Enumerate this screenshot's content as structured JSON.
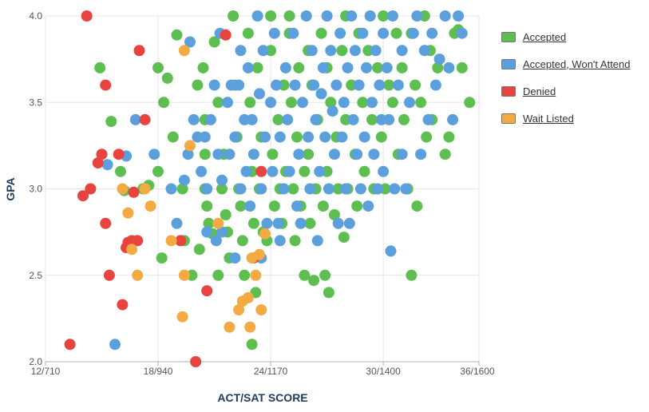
{
  "chart_data": {
    "type": "scatter",
    "xlabel": "ACT/SAT SCORE",
    "ylabel": "GPA",
    "x_ticks": [
      "12/710",
      "18/940",
      "24/1170",
      "30/1400",
      "36/1600"
    ],
    "x_tick_values": [
      12,
      18,
      24,
      30,
      36
    ],
    "y_ticks": [
      "2.0",
      "2.5",
      "3.0",
      "3.5",
      "4.0"
    ],
    "xlim": [
      12,
      35.1
    ],
    "ylim": [
      2.0,
      4.0
    ],
    "grid": true,
    "legend_position": "right",
    "series": [
      {
        "name": "Accepted",
        "color": "#5cbf4f",
        "points": [
          [
            14.9,
            3.7
          ],
          [
            15.5,
            3.39
          ],
          [
            16.0,
            3.1
          ],
          [
            16.2,
            2.99
          ],
          [
            17.2,
            3.0
          ],
          [
            17.5,
            3.02
          ],
          [
            18.0,
            3.7
          ],
          [
            18.0,
            3.1
          ],
          [
            18.2,
            2.6
          ],
          [
            18.5,
            3.64
          ],
          [
            18.3,
            3.5
          ],
          [
            19.0,
            3.89
          ],
          [
            18.8,
            3.3
          ],
          [
            19.3,
            3.0
          ],
          [
            19.4,
            2.7
          ],
          [
            19.8,
            2.5
          ],
          [
            20.1,
            3.6
          ],
          [
            20.2,
            2.65
          ],
          [
            20.4,
            3.7
          ],
          [
            20.5,
            3.2
          ],
          [
            20.5,
            3.0
          ],
          [
            20.6,
            2.9
          ],
          [
            20.7,
            2.8
          ],
          [
            20.5,
            3.4
          ],
          [
            20.9,
            2.74
          ],
          [
            21.0,
            3.85
          ],
          [
            21.2,
            3.5
          ],
          [
            21.2,
            2.5
          ],
          [
            21.4,
            3.0
          ],
          [
            21.5,
            3.2
          ],
          [
            21.6,
            2.85
          ],
          [
            21.7,
            2.75
          ],
          [
            21.8,
            2.6
          ],
          [
            22.0,
            4.0
          ],
          [
            22.1,
            3.6
          ],
          [
            22.2,
            3.3
          ],
          [
            22.3,
            3.0
          ],
          [
            22.4,
            2.9
          ],
          [
            22.5,
            2.7
          ],
          [
            22.6,
            2.5
          ],
          [
            22.8,
            3.9
          ],
          [
            22.9,
            3.5
          ],
          [
            23.0,
            3.1
          ],
          [
            23.1,
            2.8
          ],
          [
            23.2,
            2.4
          ],
          [
            23.0,
            2.1
          ],
          [
            23.3,
            3.7
          ],
          [
            23.4,
            3.0
          ],
          [
            23.5,
            3.3
          ],
          [
            23.6,
            2.75
          ],
          [
            23.8,
            2.7
          ],
          [
            24.0,
            4.0
          ],
          [
            24.0,
            3.8
          ],
          [
            24.1,
            3.2
          ],
          [
            24.2,
            2.9
          ],
          [
            24.4,
            3.4
          ],
          [
            24.5,
            3.0
          ],
          [
            24.6,
            2.8
          ],
          [
            24.7,
            3.6
          ],
          [
            24.8,
            3.1
          ],
          [
            25.0,
            4.0
          ],
          [
            25.0,
            3.9
          ],
          [
            25.1,
            3.5
          ],
          [
            25.2,
            3.0
          ],
          [
            25.3,
            2.7
          ],
          [
            25.4,
            3.3
          ],
          [
            25.5,
            3.7
          ],
          [
            25.6,
            2.9
          ],
          [
            25.8,
            3.1
          ],
          [
            25.8,
            2.5
          ],
          [
            26.0,
            3.8
          ],
          [
            26.0,
            3.2
          ],
          [
            26.1,
            2.8
          ],
          [
            26.2,
            3.6
          ],
          [
            26.3,
            2.47
          ],
          [
            26.4,
            3.0
          ],
          [
            26.5,
            3.4
          ],
          [
            26.7,
            3.9
          ],
          [
            26.8,
            2.9
          ],
          [
            26.9,
            2.5
          ],
          [
            27.0,
            3.7
          ],
          [
            27.0,
            3.1
          ],
          [
            27.1,
            2.4
          ],
          [
            27.2,
            3.5
          ],
          [
            27.4,
            2.85
          ],
          [
            27.5,
            3.3
          ],
          [
            27.6,
            3.0
          ],
          [
            27.8,
            3.8
          ],
          [
            27.9,
            2.72
          ],
          [
            28.0,
            4.0
          ],
          [
            28.0,
            3.4
          ],
          [
            28.1,
            3.0
          ],
          [
            28.3,
            3.6
          ],
          [
            28.5,
            3.2
          ],
          [
            28.6,
            2.9
          ],
          [
            28.7,
            3.9
          ],
          [
            28.9,
            3.5
          ],
          [
            29.0,
            3.1
          ],
          [
            29.2,
            3.8
          ],
          [
            29.4,
            3.4
          ],
          [
            29.5,
            3.0
          ],
          [
            29.7,
            3.7
          ],
          [
            29.9,
            3.3
          ],
          [
            30.0,
            4.0
          ],
          [
            30.1,
            3.0
          ],
          [
            30.3,
            3.6
          ],
          [
            30.5,
            3.5
          ],
          [
            30.7,
            3.9
          ],
          [
            30.8,
            3.2
          ],
          [
            31.0,
            3.7
          ],
          [
            31.1,
            3.4
          ],
          [
            31.3,
            3.0
          ],
          [
            31.5,
            2.5
          ],
          [
            31.5,
            3.9
          ],
          [
            31.7,
            3.6
          ],
          [
            31.8,
            2.9
          ],
          [
            32.0,
            3.5
          ],
          [
            32.2,
            4.0
          ],
          [
            32.3,
            3.3
          ],
          [
            32.5,
            3.8
          ],
          [
            32.6,
            3.4
          ],
          [
            32.9,
            3.7
          ],
          [
            33.3,
            3.2
          ],
          [
            33.5,
            3.3
          ],
          [
            33.8,
            3.9
          ],
          [
            34.0,
            3.92
          ],
          [
            34.2,
            3.7
          ],
          [
            34.6,
            3.5
          ]
        ]
      },
      {
        "name": "Accepted, Won't Attend",
        "color": "#5ba0dd",
        "points": [
          [
            15.3,
            3.14
          ],
          [
            15.7,
            2.1
          ],
          [
            16.3,
            3.19
          ],
          [
            16.8,
            3.4
          ],
          [
            17.8,
            3.2
          ],
          [
            18.7,
            3.0
          ],
          [
            19.0,
            2.8
          ],
          [
            19.2,
            2.7
          ],
          [
            19.4,
            3.05
          ],
          [
            19.6,
            3.2
          ],
          [
            19.7,
            3.85
          ],
          [
            19.9,
            3.4
          ],
          [
            20.1,
            3.3
          ],
          [
            20.3,
            3.1
          ],
          [
            20.5,
            3.3
          ],
          [
            20.6,
            3.0
          ],
          [
            20.6,
            2.75
          ],
          [
            20.8,
            3.4
          ],
          [
            21.0,
            3.6
          ],
          [
            21.1,
            2.7
          ],
          [
            21.2,
            3.2
          ],
          [
            21.3,
            3.9
          ],
          [
            21.4,
            3.05
          ],
          [
            21.4,
            2.75
          ],
          [
            21.7,
            3.5
          ],
          [
            21.8,
            3.2
          ],
          [
            21.9,
            3.6
          ],
          [
            22.1,
            3.3
          ],
          [
            22.1,
            2.6
          ],
          [
            22.3,
            3.6
          ],
          [
            22.4,
            3.0
          ],
          [
            22.4,
            3.8
          ],
          [
            22.6,
            3.4
          ],
          [
            22.7,
            3.1
          ],
          [
            22.8,
            3.7
          ],
          [
            22.9,
            2.9
          ],
          [
            23.0,
            3.4
          ],
          [
            23.1,
            3.2
          ],
          [
            23.3,
            4.0
          ],
          [
            23.4,
            3.55
          ],
          [
            23.5,
            3.0
          ],
          [
            23.5,
            2.6
          ],
          [
            23.6,
            3.8
          ],
          [
            23.7,
            3.3
          ],
          [
            23.8,
            2.8
          ],
          [
            24.0,
            3.5
          ],
          [
            24.1,
            3.1
          ],
          [
            24.2,
            3.9
          ],
          [
            24.3,
            3.6
          ],
          [
            24.4,
            2.8
          ],
          [
            24.5,
            3.3
          ],
          [
            24.5,
            2.7
          ],
          [
            24.7,
            3.0
          ],
          [
            24.8,
            3.7
          ],
          [
            24.9,
            3.4
          ],
          [
            25.0,
            3.1
          ],
          [
            25.2,
            3.9
          ],
          [
            25.3,
            3.6
          ],
          [
            25.4,
            2.9
          ],
          [
            25.5,
            3.2
          ],
          [
            25.6,
            2.8
          ],
          [
            25.7,
            3.5
          ],
          [
            25.9,
            4.0
          ],
          [
            26.0,
            3.3
          ],
          [
            26.1,
            3.0
          ],
          [
            26.2,
            3.8
          ],
          [
            26.3,
            3.6
          ],
          [
            26.4,
            3.4
          ],
          [
            26.5,
            2.7
          ],
          [
            26.6,
            3.1
          ],
          [
            26.7,
            3.55
          ],
          [
            26.8,
            3.7
          ],
          [
            26.9,
            3.3
          ],
          [
            27.0,
            4.0
          ],
          [
            27.1,
            3.0
          ],
          [
            27.2,
            3.8
          ],
          [
            27.3,
            3.45
          ],
          [
            27.4,
            3.2
          ],
          [
            27.5,
            3.6
          ],
          [
            27.6,
            2.8
          ],
          [
            27.7,
            3.9
          ],
          [
            27.8,
            3.3
          ],
          [
            27.9,
            3.5
          ],
          [
            28.0,
            3.0
          ],
          [
            28.1,
            3.7
          ],
          [
            28.2,
            2.8
          ],
          [
            28.3,
            4.0
          ],
          [
            28.4,
            3.4
          ],
          [
            28.5,
            3.8
          ],
          [
            28.6,
            3.2
          ],
          [
            28.7,
            3.6
          ],
          [
            28.8,
            3.0
          ],
          [
            28.9,
            3.9
          ],
          [
            29.0,
            3.3
          ],
          [
            29.1,
            3.7
          ],
          [
            29.2,
            2.9
          ],
          [
            29.3,
            4.0
          ],
          [
            29.4,
            3.5
          ],
          [
            29.5,
            3.2
          ],
          [
            29.6,
            3.8
          ],
          [
            29.7,
            3.0
          ],
          [
            29.8,
            3.6
          ],
          [
            29.9,
            3.4
          ],
          [
            30.0,
            3.9
          ],
          [
            30.0,
            3.1
          ],
          [
            30.2,
            3.7
          ],
          [
            30.3,
            3.4
          ],
          [
            30.4,
            2.64
          ],
          [
            30.5,
            4.0
          ],
          [
            30.6,
            3.0
          ],
          [
            30.8,
            3.6
          ],
          [
            31.0,
            3.2
          ],
          [
            31.0,
            3.8
          ],
          [
            31.2,
            3.0
          ],
          [
            31.4,
            3.5
          ],
          [
            31.6,
            3.9
          ],
          [
            31.8,
            4.0
          ],
          [
            32.0,
            3.2
          ],
          [
            32.2,
            3.8
          ],
          [
            32.4,
            3.4
          ],
          [
            32.6,
            3.9
          ],
          [
            32.8,
            3.6
          ],
          [
            33.0,
            3.75
          ],
          [
            33.3,
            4.0
          ],
          [
            33.5,
            3.7
          ],
          [
            33.7,
            3.4
          ],
          [
            34.0,
            4.0
          ],
          [
            34.2,
            3.9
          ]
        ]
      },
      {
        "name": "Denied",
        "color": "#e8433f",
        "points": [
          [
            13.3,
            2.1
          ],
          [
            14.0,
            2.96
          ],
          [
            14.2,
            4.0
          ],
          [
            14.4,
            3.0
          ],
          [
            14.8,
            3.15
          ],
          [
            15.0,
            3.2
          ],
          [
            15.2,
            2.8
          ],
          [
            15.2,
            3.6
          ],
          [
            15.4,
            2.5
          ],
          [
            15.9,
            3.2
          ],
          [
            16.1,
            2.33
          ],
          [
            16.3,
            2.66
          ],
          [
            16.4,
            2.69
          ],
          [
            16.6,
            2.7
          ],
          [
            16.7,
            2.98
          ],
          [
            16.9,
            2.7
          ],
          [
            17.0,
            3.8
          ],
          [
            17.3,
            3.4
          ],
          [
            19.2,
            2.7
          ],
          [
            20.0,
            2.0
          ],
          [
            20.6,
            2.41
          ],
          [
            21.6,
            3.89
          ],
          [
            23.1,
            2.6
          ],
          [
            23.5,
            3.1
          ]
        ]
      },
      {
        "name": "Wait Listed",
        "color": "#f4aa42",
        "points": [
          [
            16.1,
            3.0
          ],
          [
            16.4,
            2.86
          ],
          [
            16.6,
            2.65
          ],
          [
            16.9,
            2.5
          ],
          [
            17.3,
            3.0
          ],
          [
            17.6,
            2.9
          ],
          [
            18.7,
            2.7
          ],
          [
            19.3,
            2.26
          ],
          [
            19.4,
            2.5
          ],
          [
            19.4,
            3.8
          ],
          [
            19.7,
            3.25
          ],
          [
            21.2,
            2.8
          ],
          [
            21.8,
            2.2
          ],
          [
            22.3,
            2.3
          ],
          [
            22.5,
            2.35
          ],
          [
            22.8,
            2.37
          ],
          [
            22.9,
            2.2
          ],
          [
            23.0,
            2.6
          ],
          [
            23.2,
            2.5
          ],
          [
            23.5,
            2.3
          ],
          [
            23.7,
            2.74
          ],
          [
            23.4,
            2.62
          ]
        ]
      }
    ]
  }
}
